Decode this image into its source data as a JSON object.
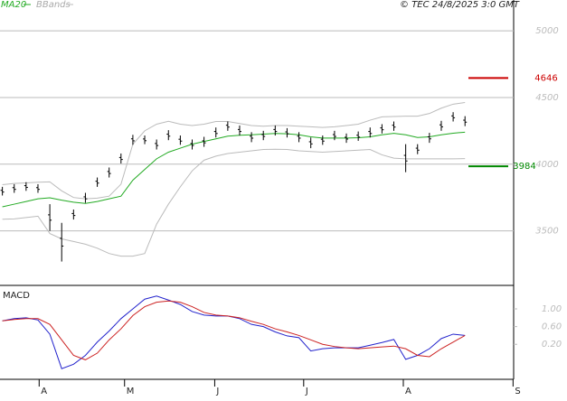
{
  "chart_data": [
    {
      "type": "ohlc",
      "copyright": "© TEC 24/8/2025 3:0 GMT",
      "xlim": [
        -0.2,
        43.1
      ],
      "ylim": [
        3091,
        5231
      ],
      "yticks": [
        3500,
        4000,
        4500,
        5000
      ],
      "grid": true,
      "high": [
        3830,
        3850,
        3865,
        3850,
        3700,
        3560,
        3660,
        3785,
        3900,
        3975,
        4080,
        4220,
        4215,
        4185,
        4255,
        4215,
        4185,
        4205,
        4275,
        4320,
        4290,
        4240,
        4250,
        4290,
        4270,
        4240,
        4200,
        4215,
        4250,
        4230,
        4245,
        4275,
        4300,
        4320,
        4150,
        4150,
        4235,
        4325,
        4390,
        4360
      ],
      "low": [
        3765,
        3785,
        3800,
        3785,
        3500,
        3270,
        3585,
        3710,
        3830,
        3900,
        4005,
        4145,
        4150,
        4110,
        4180,
        4145,
        4110,
        4130,
        4200,
        4250,
        4215,
        4165,
        4180,
        4215,
        4200,
        4165,
        4120,
        4145,
        4180,
        4160,
        4175,
        4200,
        4230,
        4250,
        3940,
        4075,
        4160,
        4250,
        4320,
        4285
      ],
      "series": [
        {
          "name": "MA20",
          "color": "#22aa22",
          "values": [
            3680,
            3700,
            3720,
            3740,
            3748,
            3730,
            3715,
            3706,
            3720,
            3740,
            3760,
            3880,
            3960,
            4040,
            4090,
            4120,
            4150,
            4170,
            4190,
            4210,
            4217,
            4220,
            4225,
            4230,
            4228,
            4220,
            4205,
            4196,
            4196,
            4196,
            4198,
            4205,
            4220,
            4231,
            4220,
            4200,
            4205,
            4220,
            4232,
            4240
          ]
        },
        {
          "name": "BBands",
          "color": "#bbbbbb",
          "values": [
            3846,
            3855,
            3860,
            3865,
            3867,
            3800,
            3750,
            3740,
            3745,
            3760,
            3850,
            4150,
            4250,
            4300,
            4322,
            4300,
            4290,
            4300,
            4320,
            4320,
            4305,
            4290,
            4285,
            4290,
            4290,
            4285,
            4280,
            4275,
            4280,
            4290,
            4300,
            4330,
            4355,
            4357,
            4360,
            4360,
            4380,
            4420,
            4450,
            4462
          ],
          "lower": [
            3587,
            3590,
            3600,
            3610,
            3480,
            3440,
            3420,
            3400,
            3370,
            3330,
            3310,
            3310,
            3330,
            3550,
            3700,
            3830,
            3950,
            4030,
            4060,
            4080,
            4090,
            4100,
            4110,
            4112,
            4110,
            4100,
            4095,
            4090,
            4095,
            4100,
            4105,
            4110,
            4070,
            4045,
            4040,
            4040,
            4040,
            4040,
            4040,
            4042
          ]
        }
      ],
      "levels": [
        {
          "value": 4646,
          "color": "#cc0000"
        },
        {
          "value": 3984,
          "color": "#008800"
        }
      ]
    },
    {
      "type": "line",
      "title": "MACD",
      "xlim": [
        -0.2,
        43.1
      ],
      "ylim": [
        -0.55,
        1.49
      ],
      "yticks": [
        {
          "value": 0.2,
          "label": "0.20"
        },
        {
          "value": 0.6,
          "label": "0.60"
        },
        {
          "value": 1,
          "label": "1.00"
        }
      ],
      "xticks": [
        {
          "value": 3.1,
          "label": "A"
        },
        {
          "value": 10.3,
          "label": "M"
        },
        {
          "value": 17.9,
          "label": "J"
        },
        {
          "value": 25.4,
          "label": "J"
        },
        {
          "value": 33.8,
          "label": "A"
        },
        {
          "value": 43.05,
          "label": "S"
        }
      ],
      "series": [
        {
          "color": "#2222cc",
          "values": [
            0.73,
            0.78,
            0.8,
            0.75,
            0.43,
            -0.35,
            -0.25,
            -0.05,
            0.25,
            0.5,
            0.78,
            1.0,
            1.22,
            1.29,
            1.2,
            1.1,
            0.94,
            0.86,
            0.84,
            0.84,
            0.78,
            0.65,
            0.6,
            0.48,
            0.39,
            0.35,
            0.05,
            0.1,
            0.12,
            0.12,
            0.12,
            0.18,
            0.24,
            0.31,
            -0.14,
            -0.05,
            0.1,
            0.33,
            0.43,
            0.4
          ]
        },
        {
          "color": "#cc2222",
          "values": [
            0.73,
            0.76,
            0.78,
            0.78,
            0.65,
            0.3,
            -0.05,
            -0.15,
            0.0,
            0.3,
            0.55,
            0.85,
            1.05,
            1.15,
            1.18,
            1.15,
            1.05,
            0.92,
            0.86,
            0.84,
            0.8,
            0.72,
            0.65,
            0.55,
            0.48,
            0.4,
            0.3,
            0.2,
            0.15,
            0.12,
            0.1,
            0.12,
            0.14,
            0.16,
            0.1,
            -0.05,
            -0.08,
            0.1,
            0.25,
            0.4
          ]
        }
      ]
    }
  ]
}
